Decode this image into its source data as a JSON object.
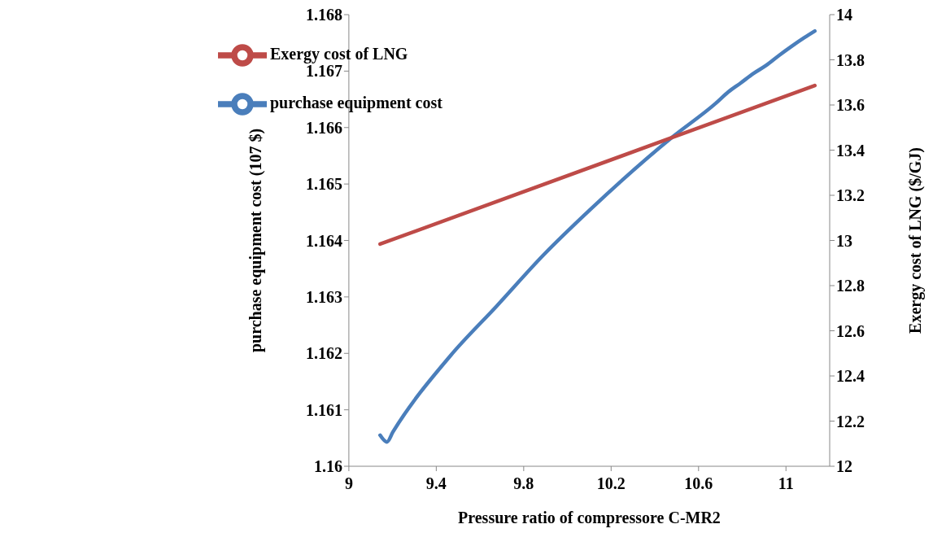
{
  "chart_data": {
    "type": "line",
    "xlabel": "Pressure ratio of compressore C-MR2",
    "ylabel": "purchase equipment cost (107 $)",
    "y2label": "Exergy cost of LNG ($/GJ)",
    "xlim": [
      9,
      11.2
    ],
    "xticks": [
      9,
      9.4,
      9.8,
      10.2,
      10.6,
      11
    ],
    "ylim": [
      1.16,
      1.168
    ],
    "yticks": [
      1.16,
      1.161,
      1.162,
      1.163,
      1.164,
      1.165,
      1.166,
      1.167,
      1.168
    ],
    "y2lim": [
      12,
      14
    ],
    "y2ticks": [
      12,
      12.2,
      12.4,
      12.6,
      12.8,
      13,
      13.2,
      13.4,
      13.6,
      13.8,
      14
    ],
    "grid": false,
    "legend": "top left",
    "marker": "none",
    "line_style": "solid",
    "series": [
      {
        "name": "purchase equipment cost",
        "color": "#4a7ebb",
        "x": [
          9.143,
          9.174,
          9.202,
          9.463,
          9.677,
          9.89,
          10.108,
          10.48,
          10.679,
          10.736,
          10.793,
          10.852,
          10.909,
          10.969,
          11.026,
          11.083,
          11.132
        ],
        "values": [
          1.16055,
          1.16043,
          1.16061,
          1.16195,
          1.16284,
          1.16374,
          1.16456,
          1.16583,
          1.16643,
          1.16663,
          1.16679,
          1.16696,
          1.1671,
          1.16728,
          1.16744,
          1.16759,
          1.16771
        ]
      },
      {
        "name": "Exergy cost of LNG",
        "color": "#be4b48",
        "axis": "y2",
        "x": [
          9.143,
          10.48,
          11.132
        ],
        "values": [
          12.984,
          13.456,
          13.686
        ]
      }
    ]
  }
}
